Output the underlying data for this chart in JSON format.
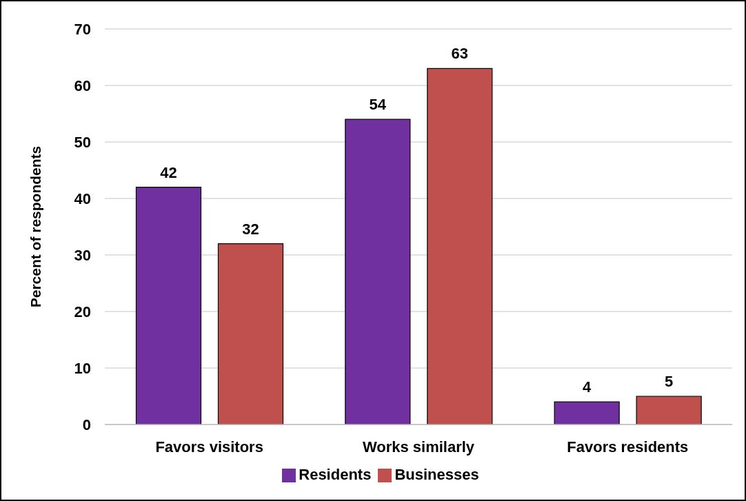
{
  "chart_data": {
    "type": "bar",
    "ylabel": "Percent of respondents",
    "categories": [
      "Favors visitors",
      "Works similarly",
      "Favors residents"
    ],
    "series": [
      {
        "name": "Residents",
        "color": "#7030a0",
        "values": [
          42,
          54,
          4
        ]
      },
      {
        "name": "Businesses",
        "color": "#c0504d",
        "values": [
          32,
          63,
          5
        ]
      }
    ],
    "ylim": [
      0,
      70
    ],
    "yticks": [
      0,
      10,
      20,
      30,
      40,
      50,
      60,
      70
    ],
    "grid": "y",
    "legend": "bottom",
    "data_labels": true
  }
}
